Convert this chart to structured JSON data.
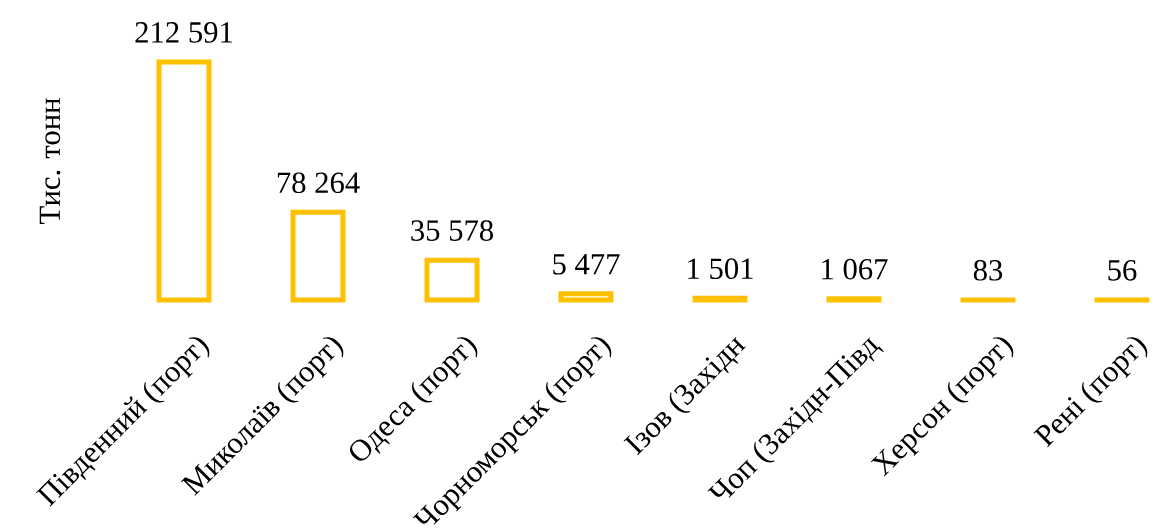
{
  "chart_data": {
    "type": "bar",
    "ylabel": "Тис. тонн",
    "categories": [
      "Південний (порт)",
      "Миколаїв (порт)",
      "Одеса (порт)",
      "Чорноморськ (порт)",
      "Ізов (Західн",
      "Чоп (Західн-Півд",
      "Херсон (порт)",
      "Рені (порт)"
    ],
    "values": [
      212591,
      78264,
      35578,
      5477,
      1501,
      1067,
      83,
      56
    ],
    "value_labels": [
      "212 591",
      "78 264",
      "35 578",
      "5 477",
      "1 501",
      "1 067",
      "83",
      "56"
    ],
    "color": "#ffc000",
    "tick_labels": "x"
  }
}
